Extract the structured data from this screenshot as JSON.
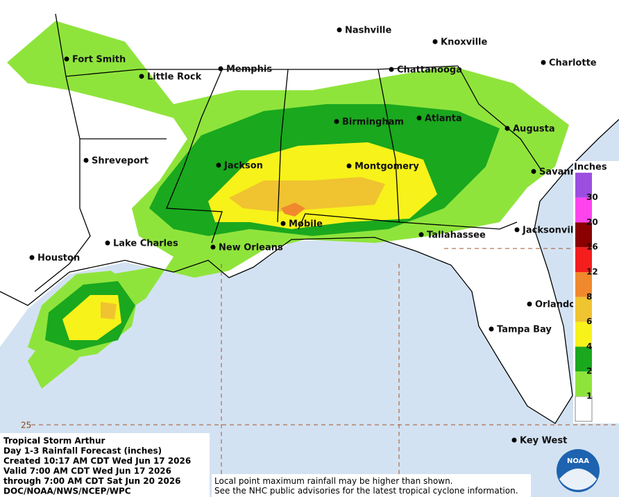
{
  "map": {
    "cities": [
      "Nashville",
      "Knoxville",
      "Fort Smith",
      "Little Rock",
      "Memphis",
      "Chattanooga",
      "Charlotte",
      "Birmingham",
      "Atlanta",
      "Augusta",
      "Shreveport",
      "Jackson",
      "Montgomery",
      "Savannah",
      "Lake Charles",
      "Houston",
      "New Orleans",
      "Mobile",
      "Tallahassee",
      "Jacksonville",
      "Orlando",
      "Tampa Bay",
      "Key West"
    ],
    "legend": {
      "title": "Inches",
      "levels": [
        1,
        2,
        4,
        6,
        8,
        12,
        16,
        20,
        30
      ]
    },
    "latitude_label": "25",
    "info": [
      "Tropical Storm Arthur",
      "Day 1-3 Rainfall Forecast (inches)",
      "Created 10:17 AM CDT Wed Jun 17 2026",
      "Valid 7:00 AM CDT Wed Jun 17 2026",
      "through 7:00 AM CDT Sat Jun 20 2026",
      "DOC/NOAA/NWS/NCEP/WPC"
    ],
    "notice": [
      "Local point maximum rainfall may be higher than shown.",
      "See the NHC public advisories for the latest tropical cyclone information."
    ],
    "logo": "NOAA"
  }
}
